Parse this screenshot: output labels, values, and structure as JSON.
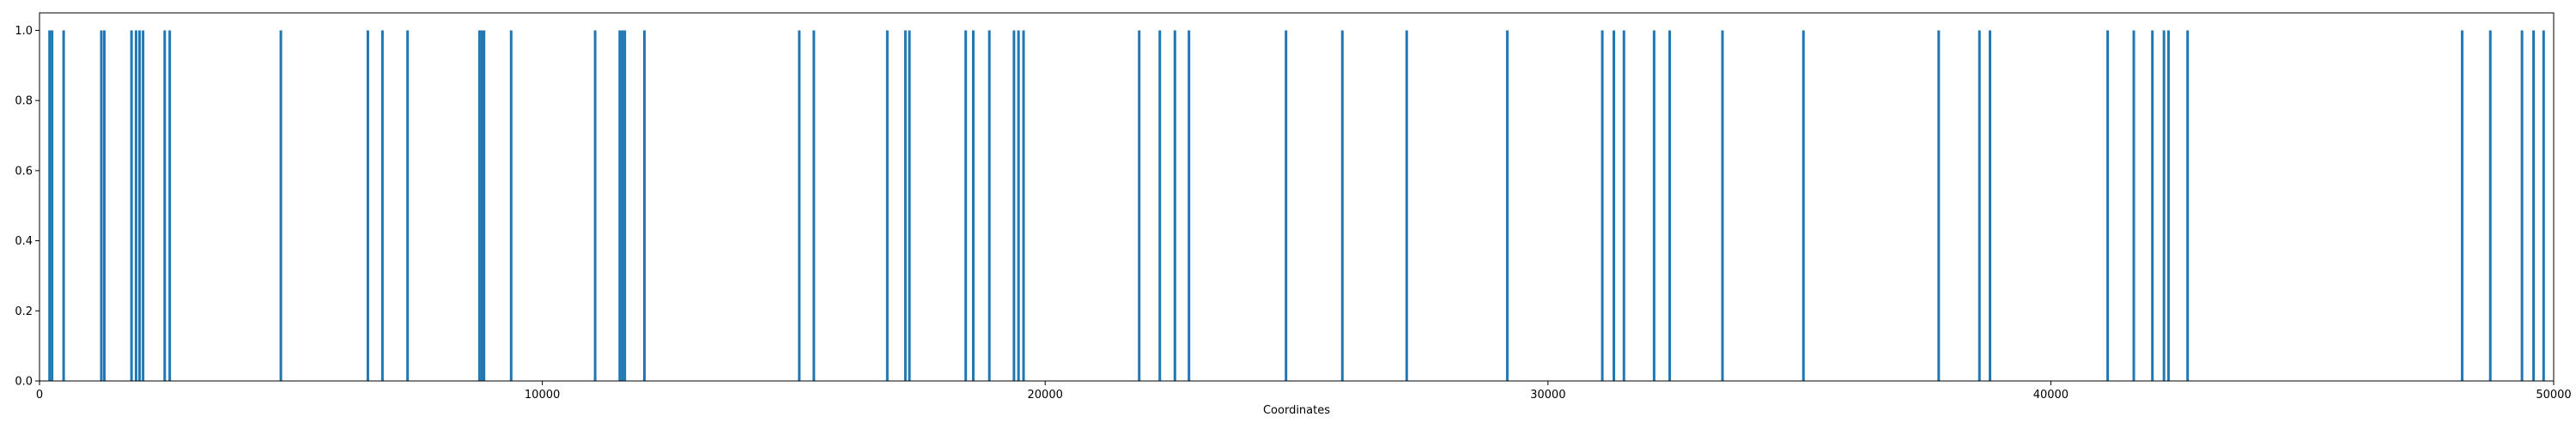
{
  "chart_data": {
    "type": "bar",
    "xlabel": "Coordinates",
    "ylabel": "",
    "xlim": [
      0,
      50000
    ],
    "ylim": [
      0,
      1.05
    ],
    "x_ticks": [
      0,
      10000,
      20000,
      30000,
      40000,
      50000
    ],
    "x_tick_labels": [
      "0",
      "10000",
      "20000",
      "30000",
      "40000",
      "50000"
    ],
    "y_ticks": [
      0.0,
      0.2,
      0.4,
      0.6,
      0.8,
      1.0
    ],
    "y_tick_labels": [
      "0.0",
      "0.2",
      "0.4",
      "0.6",
      "0.8",
      "1.0"
    ],
    "grid": false,
    "legend": "none",
    "bar_color": "#1f77b4",
    "x": [
      200,
      250,
      480,
      1230,
      1290,
      1830,
      1920,
      1990,
      2060,
      2490,
      2590,
      4800,
      6530,
      6820,
      7320,
      8750,
      8800,
      8840,
      9380,
      11050,
      11540,
      11590,
      11640,
      12030,
      15110,
      15400,
      16860,
      17220,
      17300,
      18420,
      18570,
      18890,
      19380,
      19470,
      19570,
      21870,
      22280,
      22580,
      22860,
      24790,
      25910,
      27190,
      29190,
      31080,
      31310,
      31510,
      32110,
      32420,
      33470,
      35080,
      37770,
      38580,
      38790,
      41130,
      41650,
      42020,
      42250,
      42340,
      42720,
      48180,
      48740,
      49370,
      49600,
      49800
    ],
    "values": [
      1,
      1,
      1,
      1,
      1,
      1,
      1,
      1,
      1,
      1,
      1,
      1,
      1,
      1,
      1,
      1,
      1,
      1,
      1,
      1,
      1,
      1,
      1,
      1,
      1,
      1,
      1,
      1,
      1,
      1,
      1,
      1,
      1,
      1,
      1,
      1,
      1,
      1,
      1,
      1,
      1,
      1,
      1,
      1,
      1,
      1,
      1,
      1,
      1,
      1,
      1,
      1,
      1,
      1,
      1,
      1,
      1,
      1,
      1,
      1,
      1,
      1,
      1,
      1
    ]
  }
}
